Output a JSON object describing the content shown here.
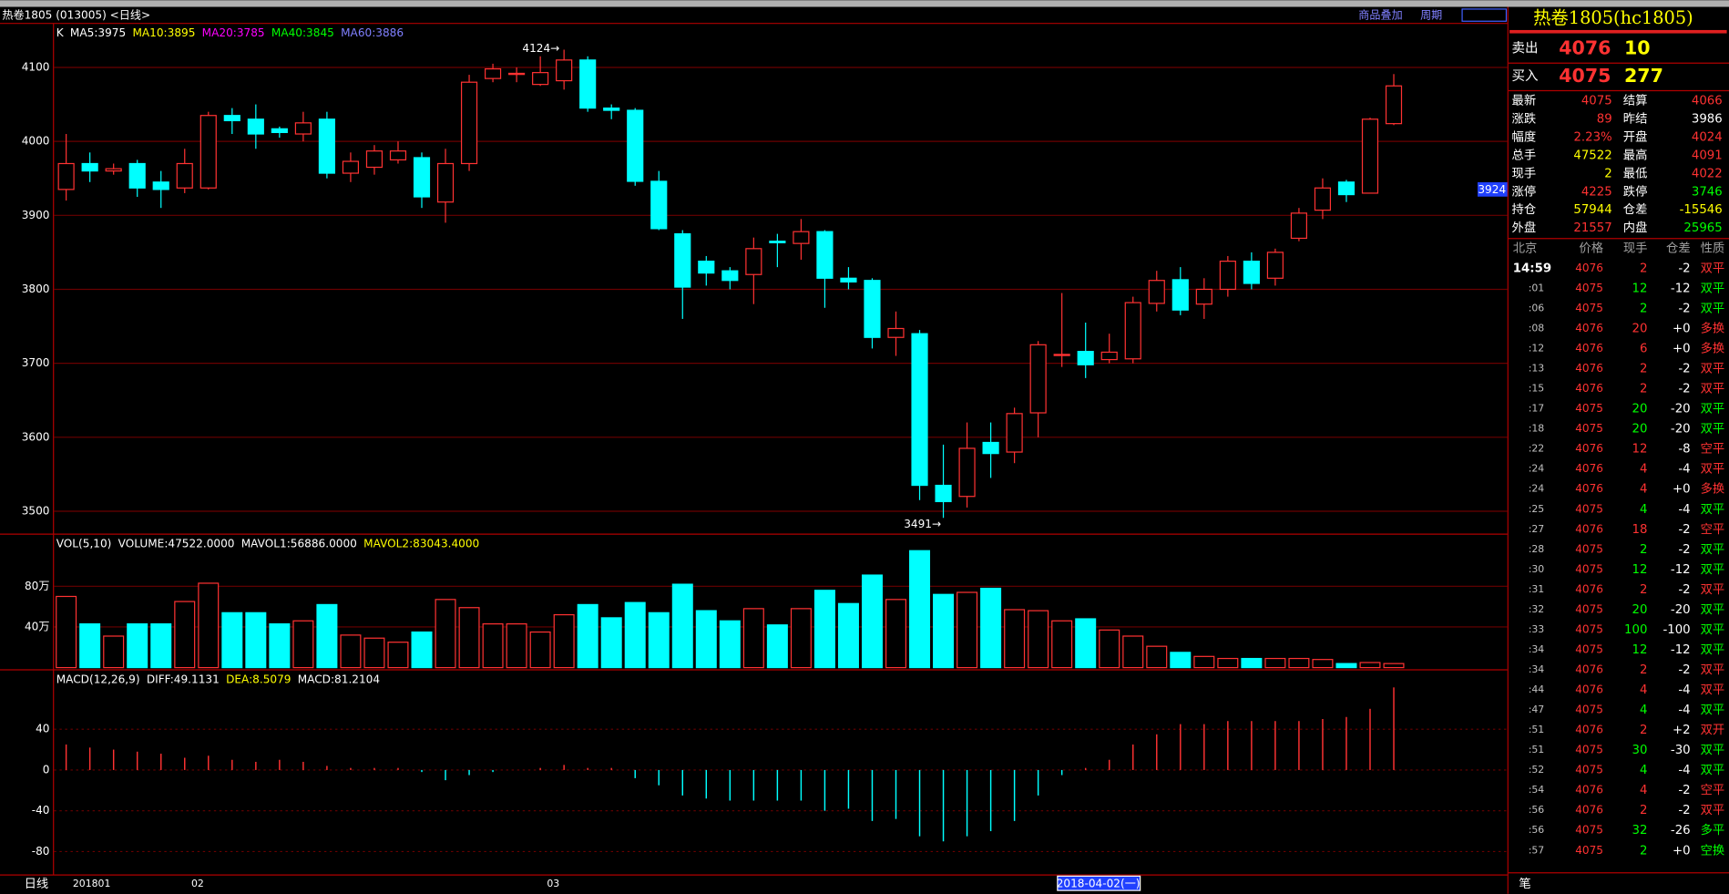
{
  "header": {
    "title": "热卷1805 (013005) <日线>",
    "buttons": [
      "商品叠加",
      "周期"
    ]
  },
  "price_pane": {
    "legend": [
      {
        "text": "K",
        "color": "#ffffff"
      },
      {
        "text": "MA5:3975",
        "color": "#ffffff"
      },
      {
        "text": "MA10:3895",
        "color": "#ffff00"
      },
      {
        "text": "MA20:3785",
        "color": "#ff00ff"
      },
      {
        "text": "MA40:3845",
        "color": "#00ff00"
      },
      {
        "text": "MA60:3886",
        "color": "#8080ff"
      }
    ],
    "ylim": [
      3469,
      4158
    ],
    "yticks": [
      3500,
      3600,
      3700,
      3800,
      3900,
      4000,
      4100
    ],
    "candles": [
      [
        3935,
        4010,
        3920,
        3970
      ],
      [
        3970,
        3985,
        3945,
        3960
      ],
      [
        3960,
        3970,
        3955,
        3963
      ],
      [
        3970,
        3975,
        3925,
        3937
      ],
      [
        3945,
        3960,
        3910,
        3935
      ],
      [
        3937,
        3990,
        3930,
        3970
      ],
      [
        3937,
        4040,
        3935,
        4035
      ],
      [
        4035,
        4045,
        4010,
        4028
      ],
      [
        4030,
        4050,
        3990,
        4010
      ],
      [
        4017,
        4020,
        4005,
        4012
      ],
      [
        4010,
        4040,
        4000,
        4025
      ],
      [
        4030,
        4040,
        3950,
        3957
      ],
      [
        3957,
        3985,
        3945,
        3973
      ],
      [
        3965,
        3995,
        3955,
        3987
      ],
      [
        3975,
        4000,
        3970,
        3987
      ],
      [
        3978,
        3985,
        3910,
        3925
      ],
      [
        3918,
        3990,
        3890,
        3970
      ],
      [
        3970,
        4090,
        3960,
        4080
      ],
      [
        4085,
        4105,
        4080,
        4098
      ],
      [
        4092,
        4100,
        4080,
        4092
      ],
      [
        4077,
        4115,
        4075,
        4093
      ],
      [
        4082,
        4124,
        4070,
        4110
      ],
      [
        4110,
        4115,
        4040,
        4045
      ],
      [
        4045,
        4050,
        4030,
        4042
      ],
      [
        4042,
        4045,
        3940,
        3946
      ],
      [
        3946,
        3960,
        3880,
        3882
      ],
      [
        3875,
        3880,
        3760,
        3803
      ],
      [
        3838,
        3845,
        3805,
        3822
      ],
      [
        3825,
        3830,
        3800,
        3812
      ],
      [
        3820,
        3870,
        3780,
        3855
      ],
      [
        3865,
        3875,
        3830,
        3863
      ],
      [
        3862,
        3895,
        3840,
        3878
      ],
      [
        3878,
        3880,
        3775,
        3815
      ],
      [
        3815,
        3830,
        3800,
        3810
      ],
      [
        3812,
        3815,
        3720,
        3735
      ],
      [
        3735,
        3770,
        3710,
        3747
      ],
      [
        3740,
        3745,
        3515,
        3535
      ],
      [
        3535,
        3590,
        3491,
        3513
      ],
      [
        3520,
        3620,
        3505,
        3585
      ],
      [
        3593,
        3620,
        3545,
        3578
      ],
      [
        3580,
        3640,
        3565,
        3632
      ],
      [
        3633,
        3730,
        3600,
        3725
      ],
      [
        3712,
        3795,
        3695,
        3712
      ],
      [
        3716,
        3755,
        3680,
        3698
      ],
      [
        3705,
        3740,
        3700,
        3715
      ],
      [
        3706,
        3790,
        3700,
        3782
      ],
      [
        3781,
        3825,
        3770,
        3812
      ],
      [
        3813,
        3830,
        3765,
        3772
      ],
      [
        3780,
        3815,
        3760,
        3800
      ],
      [
        3800,
        3845,
        3790,
        3838
      ],
      [
        3838,
        3850,
        3800,
        3808
      ],
      [
        3815,
        3855,
        3805,
        3850
      ],
      [
        3869,
        3910,
        3865,
        3903
      ],
      [
        3907,
        3950,
        3895,
        3937
      ],
      [
        3945,
        3948,
        3918,
        3928
      ],
      [
        3930,
        4032,
        3930,
        4030
      ],
      [
        4024,
        4091,
        4022,
        4075
      ]
    ],
    "high_note": "4124→",
    "low_note": "3491→",
    "cursor_price": "3924"
  },
  "volume_pane": {
    "legend": [
      {
        "text": "VOL(5,10)",
        "color": "#ffffff"
      },
      {
        "text": "VOLUME:47522.0000",
        "color": "#ffffff"
      },
      {
        "text": "MAVOL1:56886.0000",
        "color": "#ffffff"
      },
      {
        "text": "MAVOL2:83043.4000",
        "color": "#ffff00"
      }
    ],
    "ylim": [
      0,
      128
    ],
    "yticks": [
      {
        "value": 40,
        "label": "40万"
      },
      {
        "value": 80,
        "label": "80万"
      }
    ],
    "values": [
      70,
      43,
      31,
      43,
      43,
      65,
      83,
      54,
      54,
      43,
      46,
      62,
      32,
      29,
      25,
      35,
      67,
      59,
      43,
      43,
      35,
      52,
      62,
      49,
      64,
      54,
      82,
      56,
      46,
      58,
      42,
      58,
      76,
      63,
      91,
      67,
      115,
      72,
      74,
      78,
      57,
      56,
      46,
      48,
      37,
      31,
      21,
      15,
      11,
      9,
      9,
      9,
      9,
      8,
      4,
      5,
      4
    ]
  },
  "macd_pane": {
    "legend": [
      {
        "text": "MACD(12,26,9)",
        "color": "#ffffff"
      },
      {
        "text": "DIFF:49.1131",
        "color": "#ffffff"
      },
      {
        "text": "DEA:8.5079",
        "color": "#ffff00"
      },
      {
        "text": "MACD:81.2104",
        "color": "#ffffff"
      }
    ],
    "ylim": [
      -103,
      95
    ],
    "yticks": [
      -80,
      -40,
      0,
      40
    ],
    "values": [
      25,
      22,
      20,
      18,
      16,
      12,
      14,
      10,
      8,
      10,
      8,
      4,
      2,
      2,
      2,
      -2,
      -10,
      -5,
      -2,
      0,
      2,
      5,
      2,
      2,
      -8,
      -15,
      -25,
      -28,
      -30,
      -30,
      -30,
      -30,
      -40,
      -38,
      -50,
      -48,
      -65,
      -70,
      -65,
      -60,
      -50,
      -25,
      -5,
      2,
      10,
      25,
      35,
      45,
      45,
      48,
      48,
      48,
      48,
      50,
      52,
      60,
      81
    ]
  },
  "x_axis": {
    "period": "日线",
    "dates": [
      "201801",
      null,
      null,
      null,
      null,
      "02",
      null,
      null,
      null,
      null,
      null,
      null,
      null,
      null,
      null,
      null,
      null,
      null,
      null,
      null,
      "03",
      null,
      null,
      null,
      null,
      null,
      null,
      null,
      null,
      null,
      null,
      null,
      null,
      null,
      null,
      null,
      null,
      null,
      null,
      null,
      null,
      null,
      null,
      null,
      null,
      null,
      null,
      null,
      null,
      null,
      null,
      null,
      null,
      null,
      null,
      null,
      null
    ],
    "cursor_date": "2018-04-02(一)"
  },
  "quote": {
    "title": "热卷1805(hc1805)",
    "ask": {
      "label": "卖出",
      "price": 4076,
      "size": 10
    },
    "bid": {
      "label": "买入",
      "price": 4075,
      "size": 277
    },
    "items": [
      {
        "label": "最新",
        "value": 4075,
        "color": "#ff3232"
      },
      {
        "label": "结算",
        "value": 4066,
        "color": "#ff3232"
      },
      {
        "label": "涨跌",
        "value": 89,
        "color": "#ff3232"
      },
      {
        "label": "昨结",
        "value": 3986,
        "color": "#ffffff"
      },
      {
        "label": "幅度",
        "value": "2.23%",
        "color": "#ff3232"
      },
      {
        "label": "开盘",
        "value": 4024,
        "color": "#ff3232"
      },
      {
        "label": "总手",
        "value": 47522,
        "color": "#ffff00"
      },
      {
        "label": "最高",
        "value": 4091,
        "color": "#ff3232"
      },
      {
        "label": "现手",
        "value": 2,
        "color": "#ffff00"
      },
      {
        "label": "最低",
        "value": 4022,
        "color": "#ff3232"
      },
      {
        "label": "涨停",
        "value": 4225,
        "color": "#ff3232"
      },
      {
        "label": "跌停",
        "value": 3746,
        "color": "#00ff00"
      },
      {
        "label": "持仓",
        "value": 57944,
        "color": "#ffff00"
      },
      {
        "label": "仓差",
        "value": -15546,
        "color": "#ffff00"
      },
      {
        "label": "外盘",
        "value": 21557,
        "color": "#ff3232"
      },
      {
        "label": "内盘",
        "value": 25965,
        "color": "#00ff00"
      }
    ]
  },
  "ticks": {
    "headers": [
      "北京",
      "价格",
      "现手",
      "仓差",
      "性质"
    ],
    "rows": [
      [
        "14:59",
        4076,
        2,
        "-2",
        "双平"
      ],
      [
        ":01",
        4075,
        12,
        "-12",
        "双平"
      ],
      [
        ":06",
        4075,
        2,
        "-2",
        "双平"
      ],
      [
        ":08",
        4076,
        20,
        "+0",
        "多换"
      ],
      [
        ":12",
        4076,
        6,
        "+0",
        "多换"
      ],
      [
        ":13",
        4076,
        2,
        "-2",
        "双平"
      ],
      [
        ":15",
        4076,
        2,
        "-2",
        "双平"
      ],
      [
        ":17",
        4075,
        20,
        "-20",
        "双平"
      ],
      [
        ":18",
        4075,
        20,
        "-20",
        "双平"
      ],
      [
        ":22",
        4076,
        12,
        "-8",
        "空平"
      ],
      [
        ":24",
        4076,
        4,
        "-4",
        "双平"
      ],
      [
        ":24",
        4076,
        4,
        "+0",
        "多换"
      ],
      [
        ":25",
        4075,
        4,
        "-4",
        "双平"
      ],
      [
        ":27",
        4076,
        18,
        "-2",
        "空平"
      ],
      [
        ":28",
        4075,
        2,
        "-2",
        "双平"
      ],
      [
        ":30",
        4075,
        12,
        "-12",
        "双平"
      ],
      [
        ":31",
        4076,
        2,
        "-2",
        "双平"
      ],
      [
        ":32",
        4075,
        20,
        "-20",
        "双平"
      ],
      [
        ":33",
        4075,
        100,
        "-100",
        "双平"
      ],
      [
        ":34",
        4075,
        12,
        "-12",
        "双平"
      ],
      [
        ":34",
        4076,
        2,
        "-2",
        "双平"
      ],
      [
        ":44",
        4076,
        4,
        "-4",
        "双平"
      ],
      [
        ":47",
        4075,
        4,
        "-4",
        "双平"
      ],
      [
        ":51",
        4076,
        2,
        "+2",
        "双开"
      ],
      [
        ":51",
        4075,
        30,
        "-30",
        "双平"
      ],
      [
        ":52",
        4075,
        4,
        "-4",
        "双平"
      ],
      [
        ":54",
        4076,
        4,
        "-2",
        "空平"
      ],
      [
        ":56",
        4076,
        2,
        "-2",
        "双平"
      ],
      [
        ":56",
        4075,
        32,
        "-26",
        "多平"
      ],
      [
        ":57",
        4075,
        2,
        "+0",
        "空换"
      ]
    ],
    "tab": "笔"
  }
}
